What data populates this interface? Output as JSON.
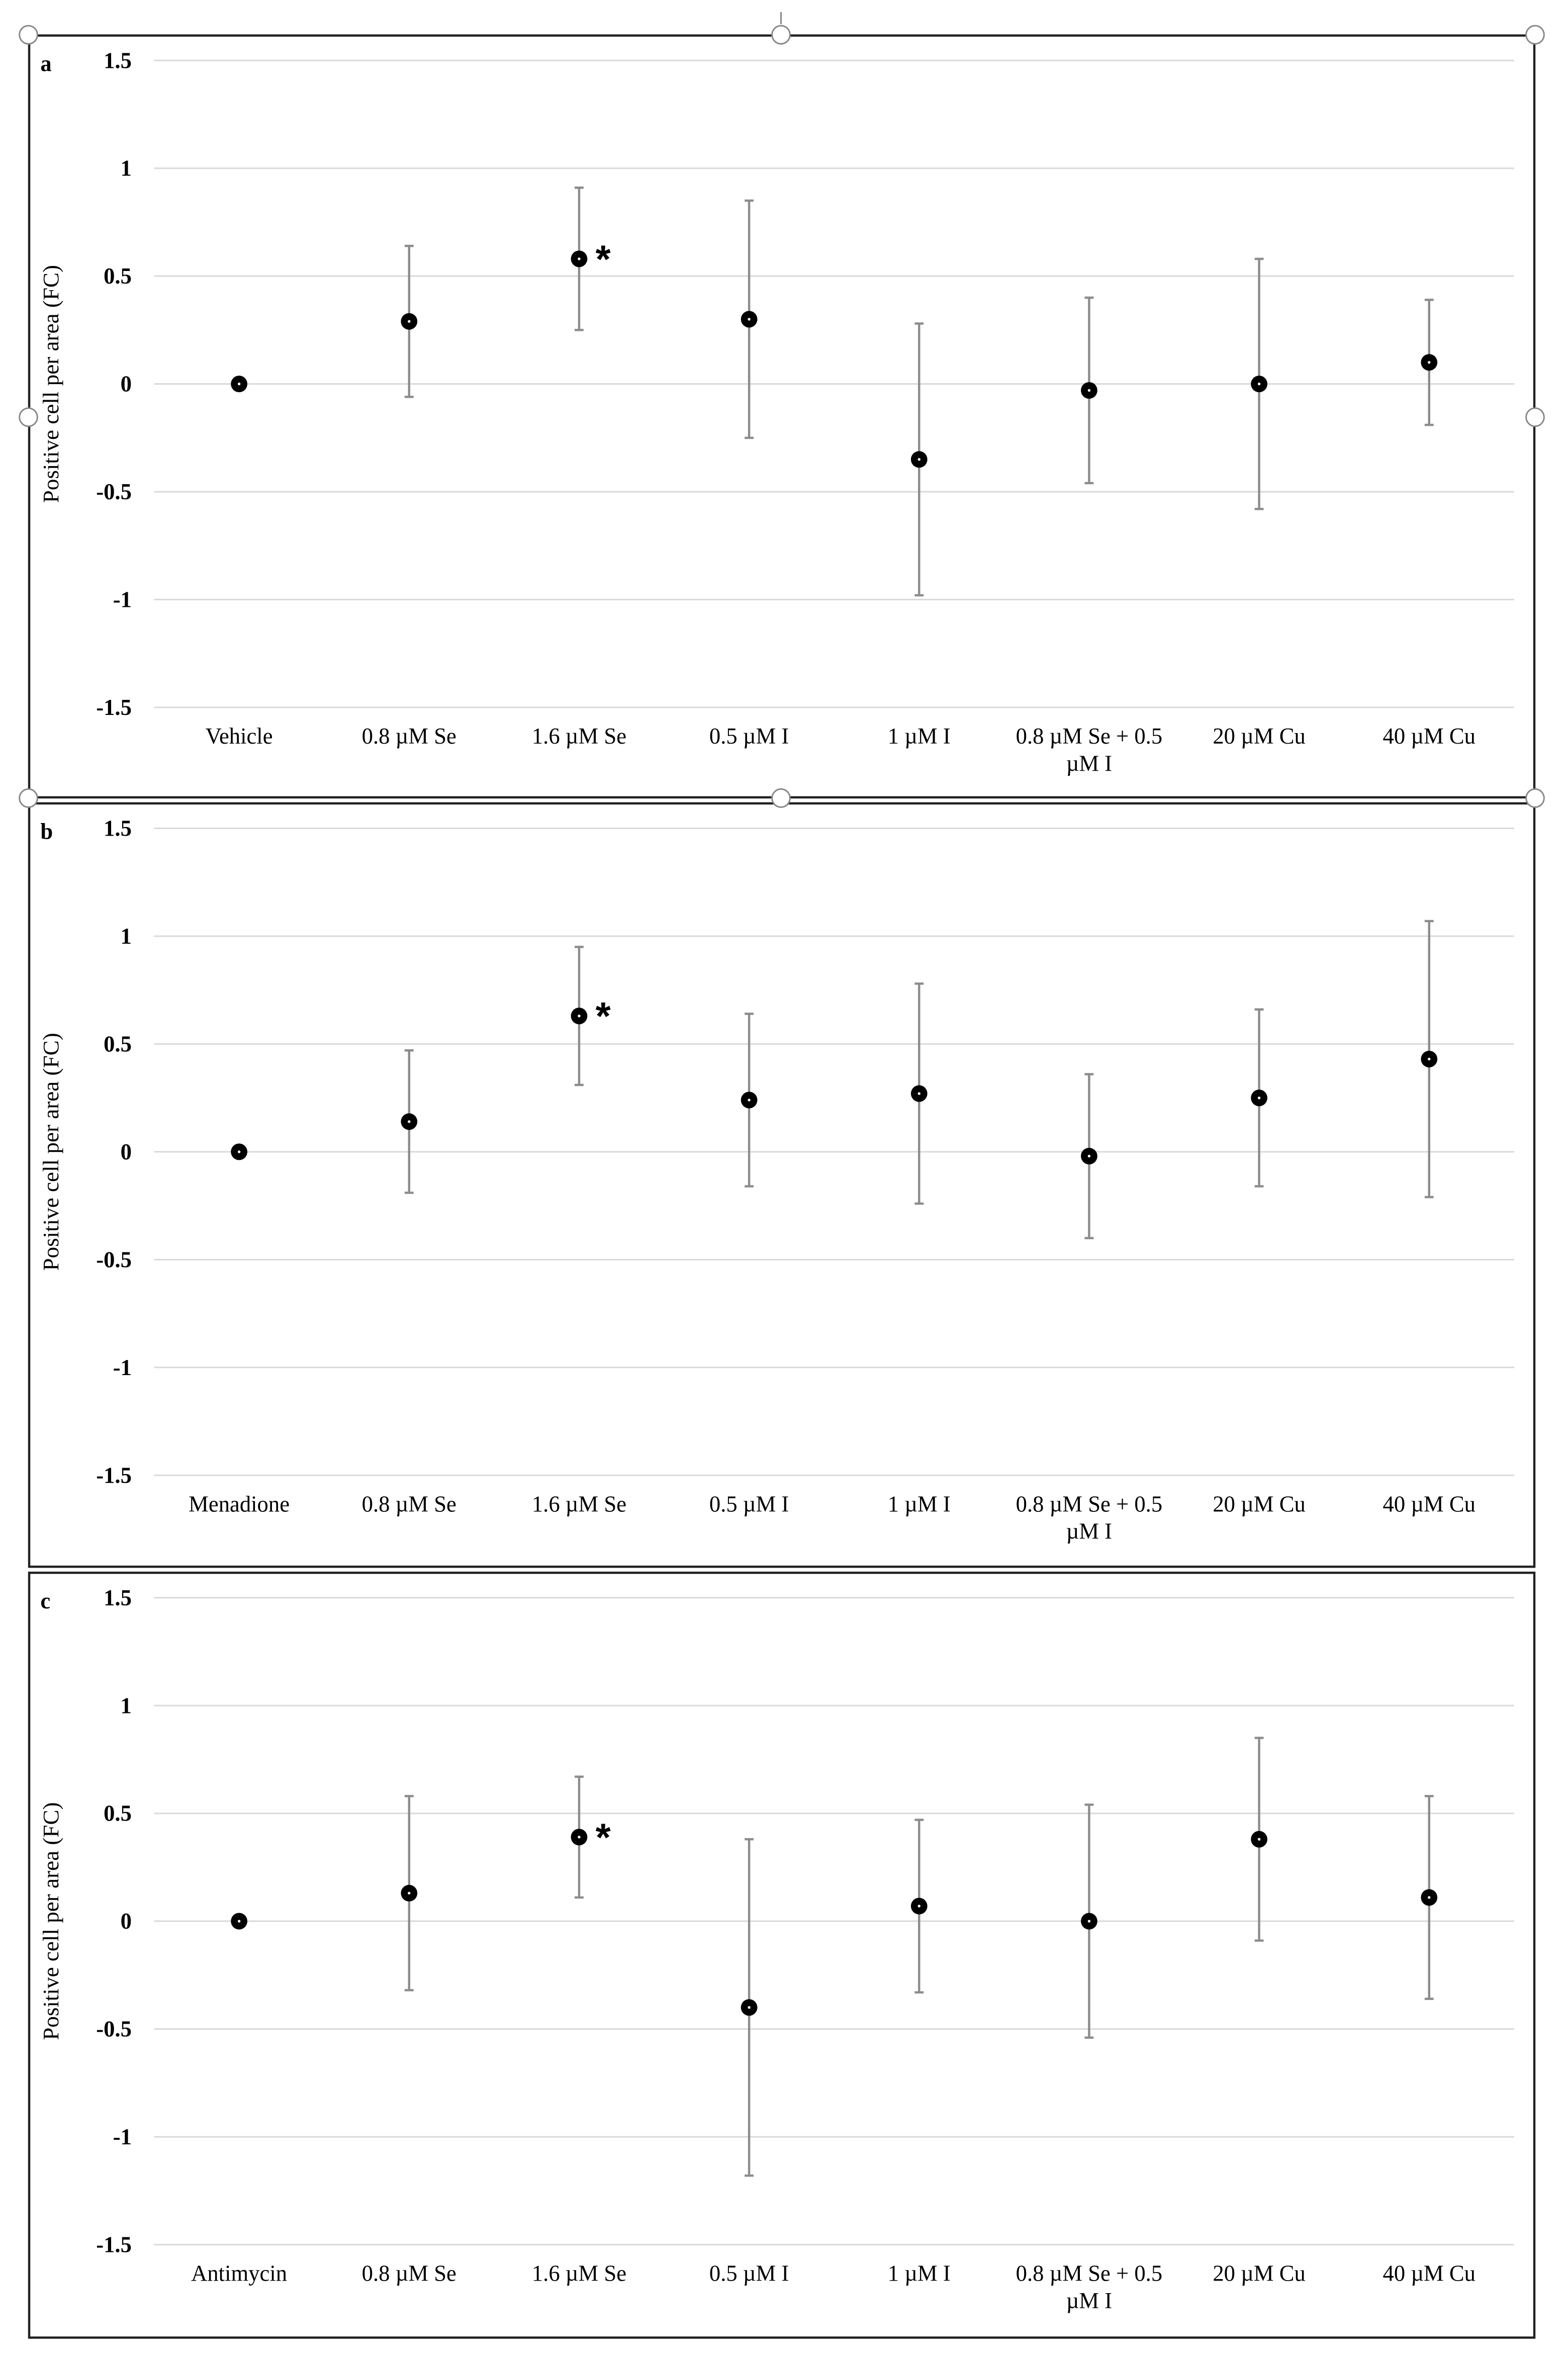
{
  "chart_data": [
    {
      "type": "scatter",
      "panel_label": "a",
      "y_label": "Positive cell per area (FC)",
      "categories": [
        "Vehicle",
        "0.8 µM Se",
        "1.6 µM Se",
        "0.5 µM I",
        "1 µM I",
        "0.8 µM Se + 0.5 µM I",
        "20 µM Cu",
        "40 µM Cu"
      ],
      "values": [
        0,
        0.29,
        0.58,
        0.3,
        -0.35,
        -0.03,
        0,
        0.1
      ],
      "errors": [
        null,
        0.35,
        0.33,
        0.55,
        0.63,
        0.43,
        0.58,
        0.29
      ],
      "annotation": "*",
      "annotated_category": "1.6 µM Se",
      "ylim": [
        -1.5,
        1.5
      ],
      "yticks": [
        -1.5,
        -1,
        -0.5,
        0,
        0.5,
        1,
        1.5
      ],
      "grid": true,
      "color": "#000000",
      "error_color": "#8c8c8c"
    },
    {
      "type": "scatter",
      "panel_label": "b",
      "y_label": "Positive cell per area (FC)",
      "categories": [
        "Menadione",
        "0.8 µM Se",
        "1.6 µM Se",
        "0.5 µM I",
        "1 µM I",
        "0.8 µM Se + 0.5 µM I",
        "20 µM Cu",
        "40 µM Cu"
      ],
      "values": [
        0,
        0.14,
        0.63,
        0.24,
        0.27,
        -0.02,
        0.25,
        0.43
      ],
      "errors": [
        null,
        0.33,
        0.32,
        0.4,
        0.51,
        0.38,
        0.41,
        0.64
      ],
      "annotation": "*",
      "annotated_category": "1.6 µM Se",
      "ylim": [
        -1.5,
        1.5
      ],
      "yticks": [
        -1.5,
        -1,
        -0.5,
        0,
        0.5,
        1,
        1.5
      ],
      "grid": true,
      "color": "#000000",
      "error_color": "#8c8c8c"
    },
    {
      "type": "scatter",
      "panel_label": "c",
      "y_label": "Positive cell per area (FC)",
      "categories": [
        "Antimycin",
        "0.8 µM Se",
        "1.6 µM Se",
        "0.5 µM I",
        "1 µM I",
        "0.8 µM Se + 0.5 µM I",
        "20 µM Cu",
        "40 µM Cu"
      ],
      "values": [
        0,
        0.13,
        0.39,
        -0.4,
        0.07,
        0,
        0.38,
        0.11
      ],
      "errors": [
        null,
        0.45,
        0.28,
        0.78,
        0.4,
        0.54,
        0.47,
        0.47
      ],
      "annotation": "*",
      "annotated_category": "1.6 µM Se",
      "ylim": [
        -1.5,
        1.5
      ],
      "yticks": [
        -1.5,
        -1,
        -0.5,
        0,
        0.5,
        1,
        1.5
      ],
      "grid": true,
      "color": "#000000",
      "error_color": "#8c8c8c"
    }
  ]
}
